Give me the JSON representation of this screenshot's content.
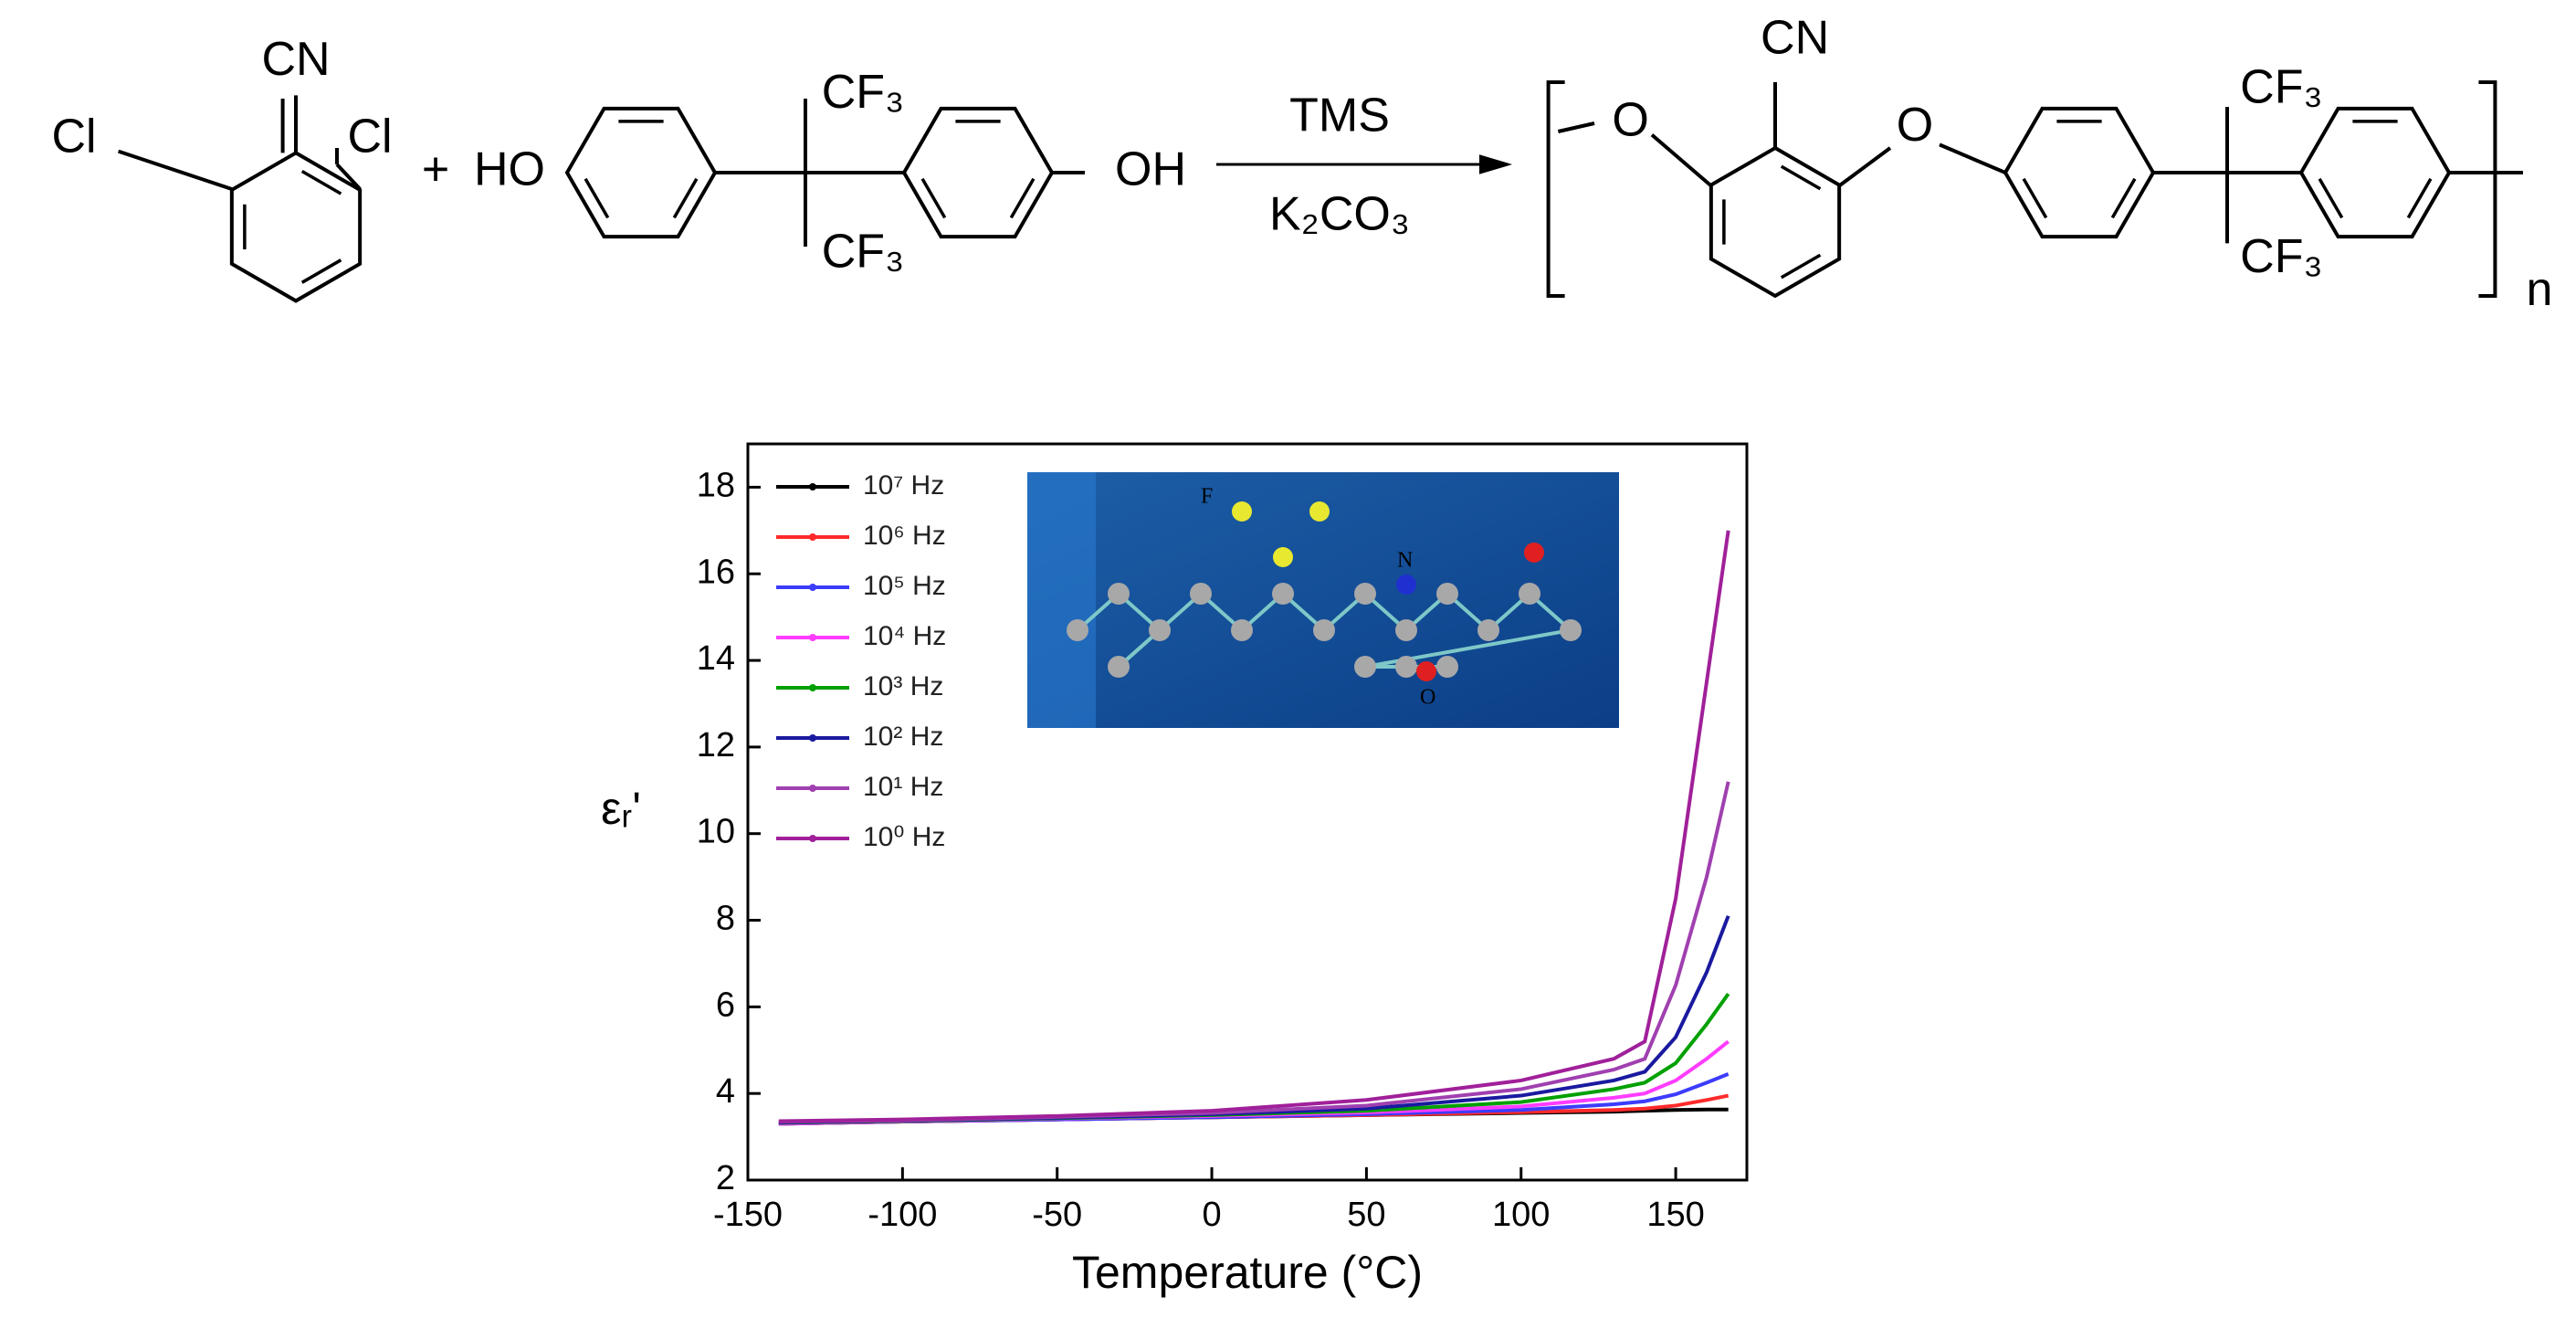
{
  "scheme": {
    "monomer1": [
      "CN",
      "Cl",
      "Cl"
    ],
    "plus": "+",
    "monomer2": [
      "HO",
      "CF₃",
      "CF₃",
      "OH"
    ],
    "reagents": [
      "TMS",
      "K₂CO₃"
    ],
    "polymer": [
      "CN",
      "O",
      "O",
      "CF₃",
      "CF₃"
    ],
    "repeat": "n"
  },
  "chart_data": {
    "type": "line",
    "x_label": "Temperature (°C)",
    "y_label": "εᵣ'",
    "inset_labels": [
      "F",
      "N",
      "O"
    ],
    "x": [
      -140,
      -100,
      -50,
      0,
      50,
      100,
      130,
      140,
      150,
      160,
      167
    ],
    "series": [
      {
        "name": "10⁷ Hz",
        "color": "#000000",
        "values": [
          3.3,
          3.35,
          3.4,
          3.45,
          3.5,
          3.55,
          3.58,
          3.6,
          3.62,
          3.63,
          3.63
        ]
      },
      {
        "name": "10⁶ Hz",
        "color": "#ff2a2a",
        "values": [
          3.3,
          3.35,
          3.4,
          3.45,
          3.5,
          3.57,
          3.62,
          3.65,
          3.72,
          3.85,
          3.95
        ]
      },
      {
        "name": "10⁵ Hz",
        "color": "#3c3cff",
        "values": [
          3.3,
          3.35,
          3.4,
          3.45,
          3.52,
          3.62,
          3.75,
          3.82,
          3.98,
          4.25,
          4.45
        ]
      },
      {
        "name": "10⁴ Hz",
        "color": "#ff3cff",
        "values": [
          3.3,
          3.35,
          3.42,
          3.48,
          3.56,
          3.7,
          3.9,
          4.0,
          4.3,
          4.8,
          5.2
        ]
      },
      {
        "name": "10³ Hz",
        "color": "#00a000",
        "values": [
          3.32,
          3.36,
          3.43,
          3.5,
          3.6,
          3.8,
          4.1,
          4.25,
          4.7,
          5.6,
          6.3
        ]
      },
      {
        "name": "10² Hz",
        "color": "#1a1aa0",
        "values": [
          3.33,
          3.37,
          3.44,
          3.52,
          3.65,
          3.95,
          4.3,
          4.5,
          5.3,
          6.8,
          8.1
        ]
      },
      {
        "name": "10¹ Hz",
        "color": "#a040b0",
        "values": [
          3.35,
          3.38,
          3.46,
          3.55,
          3.72,
          4.1,
          4.55,
          4.8,
          6.5,
          9.0,
          11.2
        ]
      },
      {
        "name": "10⁰ Hz",
        "color": "#a0209a",
        "values": [
          3.36,
          3.4,
          3.48,
          3.6,
          3.85,
          4.3,
          4.8,
          5.2,
          8.5,
          13.5,
          17.0
        ]
      }
    ],
    "xlim": [
      -150,
      173
    ],
    "xticks": [
      -150,
      -100,
      -50,
      0,
      50,
      100,
      150
    ],
    "ylim": [
      2,
      19
    ],
    "yticks": [
      2,
      4,
      6,
      8,
      10,
      12,
      14,
      16,
      18
    ],
    "legend": "upper left"
  }
}
